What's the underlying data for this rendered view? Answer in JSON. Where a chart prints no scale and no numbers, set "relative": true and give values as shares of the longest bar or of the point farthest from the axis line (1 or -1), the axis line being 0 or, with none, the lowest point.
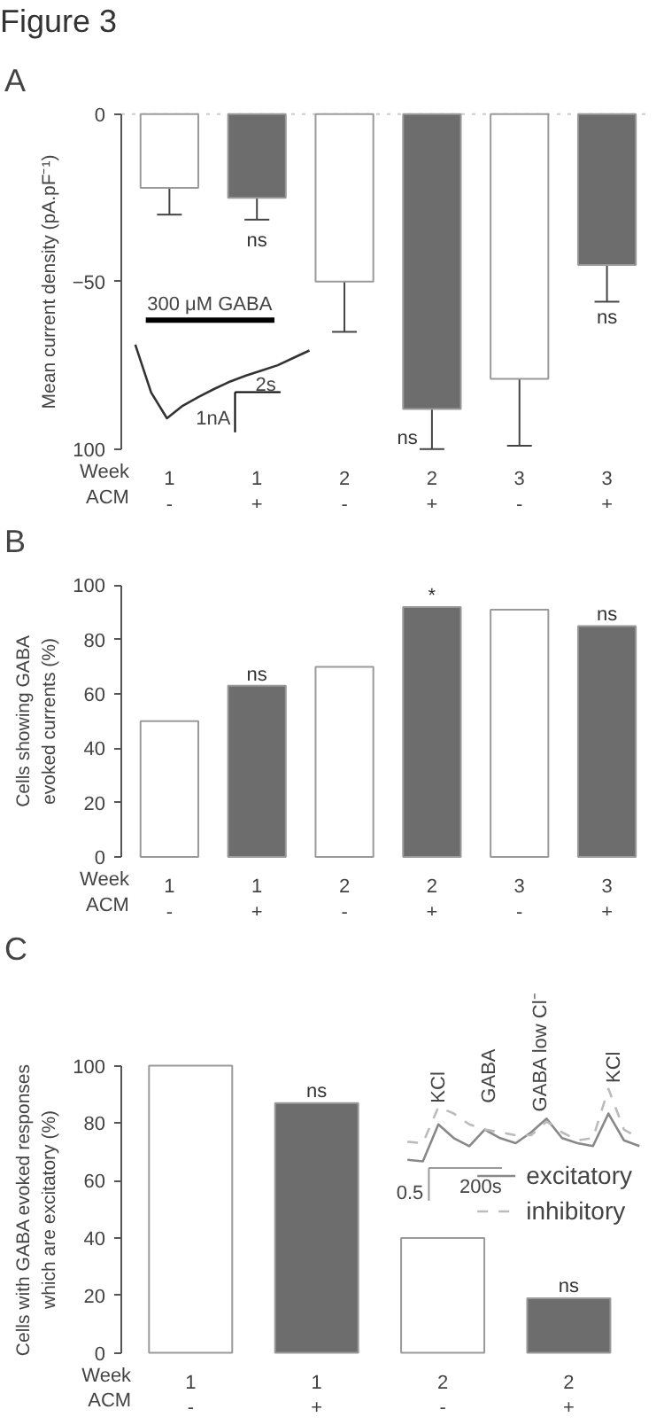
{
  "chart_data": [
    {
      "type": "bar",
      "title": "A",
      "ylabel": "Mean current density (pA.pF⁻¹)",
      "xlabel": "Week\nACM",
      "categories": [
        "1\n-",
        "1\n+",
        "2\n-",
        "2\n+",
        "3\n-",
        "3\n+"
      ],
      "values": [
        -22,
        -25,
        -50,
        -88,
        -79,
        -45
      ],
      "errors": [
        8,
        6.5,
        15,
        12,
        20,
        11
      ],
      "colors": [
        "#ffffff",
        "#6d6d6d",
        "#ffffff",
        "#6d6d6d",
        "#ffffff",
        "#6d6d6d"
      ],
      "ylim": [
        -100,
        0
      ],
      "yticks": [
        {
          "value": -100,
          "label": "100"
        },
        -50,
        0
      ],
      "ref_lines": [
        {
          "axis": "y",
          "value": 0,
          "color": "#cccccc",
          "line_style": "dotted"
        }
      ],
      "annotations": [
        "Figure 3",
        "ns",
        "ns",
        "ns"
      ]
    },
    {
      "type": "line",
      "relative": true,
      "categories": [
        null,
        null,
        null,
        null,
        null,
        null,
        null,
        null,
        null,
        null,
        null,
        null
      ],
      "series": [
        {
          "color": "#333333",
          "values": [
            1.0,
            0.35,
            0,
            0.17,
            0.29,
            0.4,
            0.5,
            0.58,
            0.65,
            0.72,
            0.82,
            0.92
          ]
        }
      ],
      "annotations": [
        "300 μM GABA",
        "1nA",
        "2s"
      ]
    },
    {
      "type": "bar",
      "title": "B",
      "ylabel": "Cells showing GABA evoked currents (%)",
      "xlabel": "Week\nACM",
      "categories": [
        "1\n-",
        "1\n+",
        "2\n-",
        "2\n+",
        "3\n-",
        "3\n+"
      ],
      "values": [
        50,
        63,
        70,
        92,
        91,
        85
      ],
      "colors": [
        "#ffffff",
        "#6d6d6d",
        "#ffffff",
        "#6d6d6d",
        "#ffffff",
        "#6d6d6d"
      ],
      "ylim": [
        0,
        100
      ],
      "yticks": [
        0,
        20,
        40,
        60,
        80,
        100
      ],
      "annotations": [
        "ns",
        "*",
        "ns"
      ]
    },
    {
      "type": "bar",
      "title": "C",
      "ylabel": "Cells with GABA evoked responses which are excitatory (%)",
      "xlabel": "Week\nACM",
      "categories": [
        "1\n-",
        "1\n+",
        "2\n-",
        "2\n+"
      ],
      "values": [
        100,
        87,
        40,
        19
      ],
      "colors": [
        "#ffffff",
        "#6d6d6d",
        "#ffffff",
        "#6d6d6d"
      ],
      "ylim": [
        0,
        100
      ],
      "yticks": [
        0,
        20,
        40,
        60,
        80,
        100
      ],
      "annotations": [
        "ns",
        "ns"
      ]
    },
    {
      "type": "line",
      "relative": true,
      "legend": "right",
      "categories": [
        null,
        null,
        null,
        null,
        null,
        null,
        null,
        null,
        null,
        null,
        null,
        null,
        null,
        null,
        null,
        null
      ],
      "series": [
        {
          "name": "excitatory",
          "color": "#888888",
          "line_style": "solid",
          "values": [
            0.02,
            0,
            0.51,
            0.32,
            0.21,
            0.44,
            0.32,
            0.25,
            0.4,
            0.59,
            0.32,
            0.25,
            0.21,
            0.66,
            0.29,
            0.21
          ]
        },
        {
          "name": "inhibitory",
          "color": "#bbbbbb",
          "line_style": "dashed",
          "values": [
            0.27,
            0.25,
            0.75,
            0.66,
            0.51,
            0.44,
            0.4,
            0.36,
            0.36,
            0.55,
            0.4,
            0.29,
            0.32,
            1.0,
            0.44,
            0.32
          ]
        }
      ],
      "annotations": [
        "KCl",
        "GABA",
        "GABA low Cl⁻",
        "KCl",
        "0.5",
        "200s"
      ]
    }
  ]
}
